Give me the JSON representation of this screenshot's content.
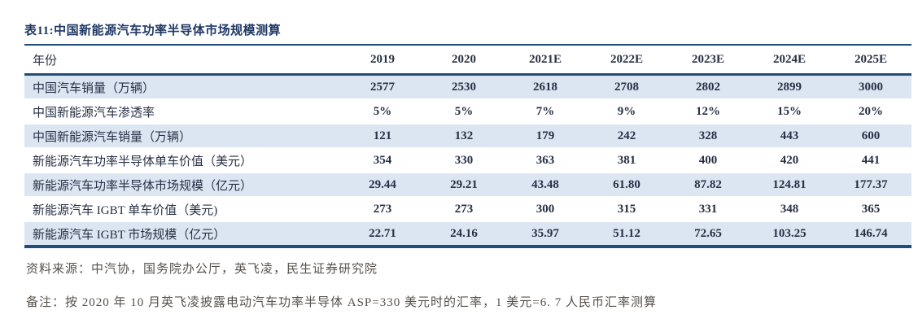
{
  "title": "表11:中国新能源汽车功率半导体市场规模测算",
  "colors": {
    "navy_border": "#1f4e79",
    "title_navy": "#1f3864",
    "band_blue": "#dce6f2",
    "footer_gray": "#57504a"
  },
  "chart_data": {
    "type": "table",
    "title": "表11:中国新能源汽车功率半导体市场规模测算",
    "columns": [
      "年份",
      "2019",
      "2020",
      "2021E",
      "2022E",
      "2023E",
      "2024E",
      "2025E"
    ],
    "rows": [
      {
        "label": "中国汽车销量（万辆）",
        "values": [
          "2577",
          "2530",
          "2618",
          "2708",
          "2802",
          "2899",
          "3000"
        ]
      },
      {
        "label": "中国新能源汽车渗透率",
        "values": [
          "5%",
          "5%",
          "7%",
          "9%",
          "12%",
          "15%",
          "20%"
        ]
      },
      {
        "label": "中国新能源汽车销量（万辆）",
        "values": [
          "121",
          "132",
          "179",
          "242",
          "328",
          "443",
          "600"
        ]
      },
      {
        "label": "新能源汽车功率半导体单车价值（美元）",
        "values": [
          "354",
          "330",
          "363",
          "381",
          "400",
          "420",
          "441"
        ]
      },
      {
        "label": "新能源汽车功率半导体市场规模（亿元）",
        "values": [
          "29.44",
          "29.21",
          "43.48",
          "61.80",
          "87.82",
          "124.81",
          "177.37"
        ]
      },
      {
        "label": "新能源汽车 IGBT 单车价值（美元)",
        "values": [
          "273",
          "273",
          "300",
          "315",
          "331",
          "348",
          "365"
        ]
      },
      {
        "label": "新能源汽车 IGBT 市场规模（亿元）",
        "values": [
          "22.71",
          "24.16",
          "35.97",
          "51.12",
          "72.65",
          "103.25",
          "146.74"
        ]
      }
    ]
  },
  "footer": {
    "source": "资料来源：中汽协，国务院办公厅，英飞凌，民生证券研究院",
    "note": "备注：按 2020 年 10 月英飞凌披露电动汽车功率半导体 ASP=330 美元时的汇率，1 美元=6. 7 人民币汇率测算"
  }
}
